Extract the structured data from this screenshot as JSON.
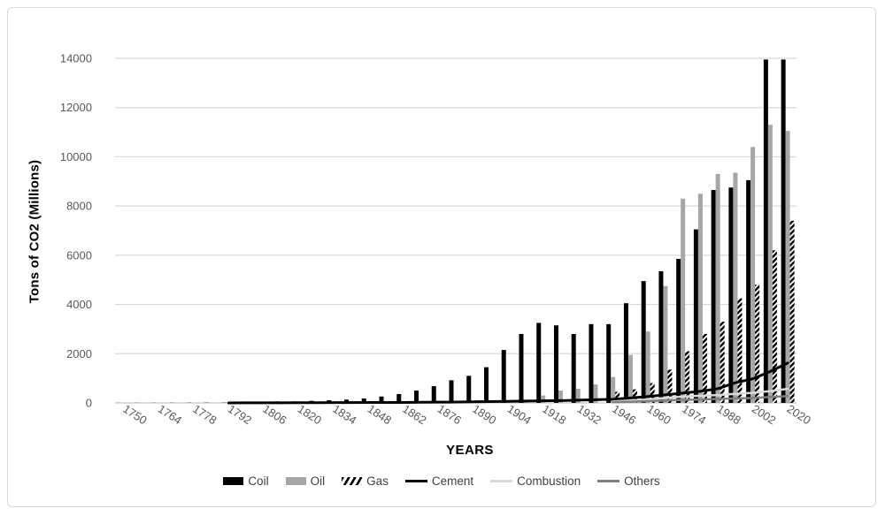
{
  "frame": {
    "background": "#ffffff",
    "border_color": "#d9d9d9"
  },
  "chart_data": {
    "type": "bar",
    "subtype": "combo-bar-line",
    "title": "",
    "xlabel": "YEARS",
    "ylabel": "Tons of CO2 (Millions)",
    "ylim": [
      0,
      14000
    ],
    "y_ticks": [
      0,
      2000,
      4000,
      6000,
      8000,
      10000,
      12000,
      14000
    ],
    "grid": "horizontal",
    "gridline_color": "#d9d9d9",
    "axis_color": "#c6c6c6",
    "tick_label_color": "#595959",
    "legend_position": "bottom",
    "x_tick_interval": 2,
    "categories": [
      "1750",
      "1757",
      "1764",
      "1771",
      "1778",
      "1785",
      "1792",
      "1799",
      "1806",
      "1813",
      "1820",
      "1827",
      "1834",
      "1841",
      "1848",
      "1855",
      "1862",
      "1869",
      "1876",
      "1883",
      "1890",
      "1897",
      "1904",
      "1911",
      "1918",
      "1925",
      "1932",
      "1939",
      "1946",
      "1953",
      "1960",
      "1967",
      "1974",
      "1981",
      "1988",
      "1995",
      "2002",
      "2011",
      "2020"
    ],
    "x_tick_labels": [
      "1750",
      "1764",
      "1778",
      "1792",
      "1806",
      "1820",
      "1834",
      "1848",
      "1862",
      "1876",
      "1890",
      "1904",
      "1918",
      "1932",
      "1946",
      "1960",
      "1974",
      "1988",
      "2002",
      "2020"
    ],
    "series": [
      {
        "name": "Coil",
        "type": "bar",
        "style": "solid",
        "color": "#000000",
        "values": [
          3,
          4,
          5,
          6,
          8,
          9,
          10,
          15,
          40,
          60,
          60,
          85,
          110,
          135,
          180,
          260,
          360,
          500,
          680,
          920,
          1100,
          1450,
          2150,
          2800,
          3250,
          3150,
          2800,
          3200,
          3200,
          4050,
          4950,
          5350,
          5850,
          7050,
          8650,
          8750,
          9050,
          13950,
          13950
        ]
      },
      {
        "name": "Oil",
        "type": "bar",
        "style": "solid",
        "color": "#a6a6a6",
        "values": [
          0,
          0,
          0,
          0,
          0,
          0,
          0,
          0,
          0,
          0,
          0,
          0,
          0,
          0,
          0,
          0,
          0,
          0,
          0,
          0,
          10,
          20,
          30,
          120,
          300,
          500,
          575,
          750,
          1050,
          1950,
          2900,
          4750,
          8300,
          8500,
          9300,
          9350,
          10400,
          11300,
          11050
        ]
      },
      {
        "name": "Gas",
        "type": "bar",
        "style": "hatched",
        "color": "#000000",
        "values": [
          0,
          0,
          0,
          0,
          0,
          0,
          0,
          0,
          0,
          0,
          0,
          0,
          0,
          0,
          0,
          0,
          0,
          0,
          0,
          0,
          0,
          0,
          0,
          0,
          0,
          0,
          0,
          0,
          450,
          550,
          800,
          1350,
          2100,
          2800,
          3300,
          4250,
          4800,
          6200,
          7400
        ]
      },
      {
        "name": "Cement",
        "type": "line",
        "color": "#000000",
        "width": 3,
        "values": [
          null,
          null,
          null,
          null,
          null,
          null,
          2,
          3,
          5,
          6,
          8,
          10,
          12,
          14,
          16,
          18,
          20,
          25,
          30,
          35,
          45,
          55,
          65,
          75,
          85,
          95,
          110,
          130,
          150,
          200,
          260,
          330,
          400,
          470,
          580,
          820,
          980,
          1280,
          1620
        ]
      },
      {
        "name": "Combustion",
        "type": "line",
        "color": "#d9d9d9",
        "width": 2.5,
        "values": [
          null,
          null,
          null,
          null,
          null,
          null,
          null,
          null,
          null,
          null,
          null,
          null,
          null,
          null,
          null,
          null,
          null,
          null,
          null,
          null,
          null,
          null,
          null,
          null,
          null,
          null,
          null,
          null,
          60,
          100,
          140,
          200,
          260,
          290,
          320,
          370,
          410,
          480,
          570
        ]
      },
      {
        "name": "Others",
        "type": "line",
        "color": "#7f7f7f",
        "width": 2.5,
        "values": [
          null,
          null,
          null,
          null,
          null,
          null,
          null,
          null,
          null,
          null,
          null,
          null,
          null,
          null,
          null,
          null,
          null,
          null,
          null,
          null,
          null,
          null,
          null,
          null,
          null,
          null,
          null,
          null,
          30,
          50,
          70,
          100,
          120,
          140,
          160,
          180,
          200,
          240,
          280
        ]
      }
    ]
  }
}
